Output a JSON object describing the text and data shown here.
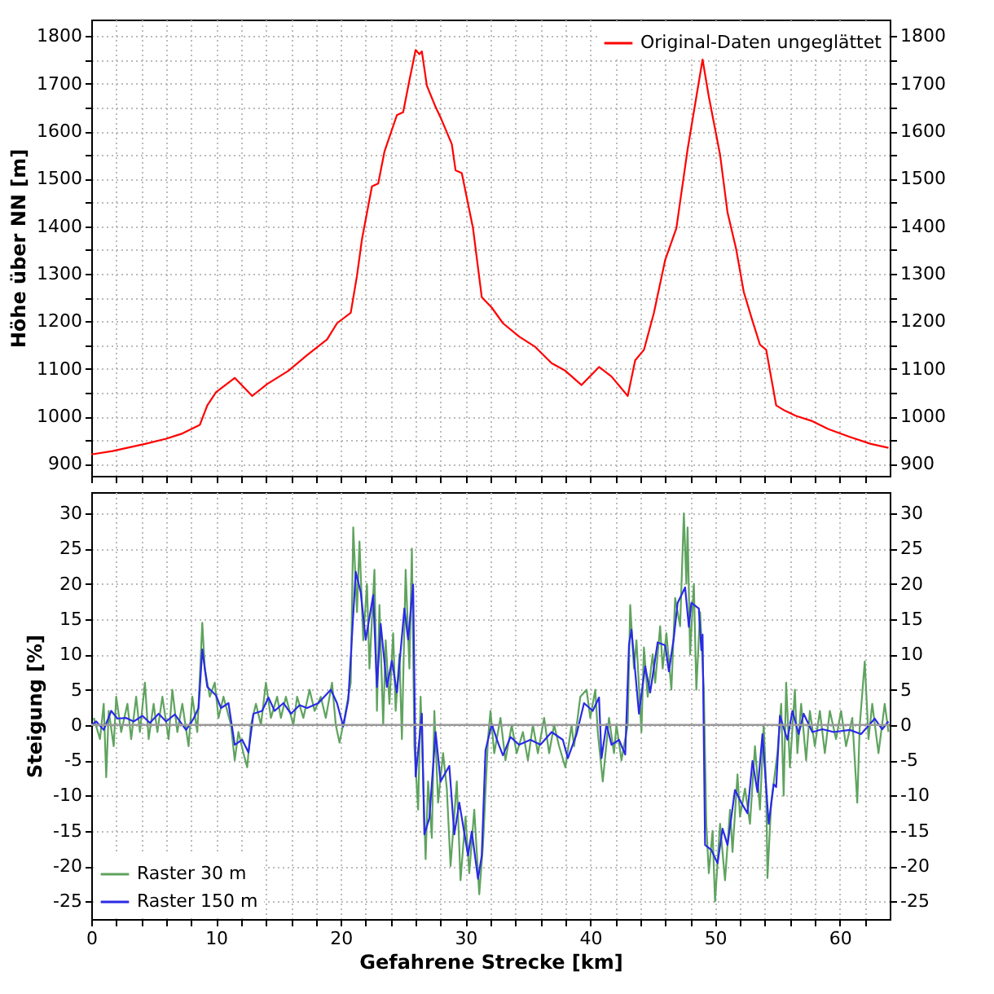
{
  "chart_data": [
    {
      "type": "line",
      "ylabel": "Höhe über NN [m]",
      "xlim": [
        0,
        64
      ],
      "ylim": [
        875,
        1835
      ],
      "y2lim": [
        875,
        1835
      ],
      "grid": true,
      "legend": "top right",
      "tick_labels": "y",
      "xticks": [
        0,
        {
          "value": 2,
          "label": null
        },
        {
          "value": 4,
          "label": null
        },
        {
          "value": 6,
          "label": null
        },
        {
          "value": 8,
          "label": null
        },
        10,
        {
          "value": 12,
          "label": null
        },
        {
          "value": 14,
          "label": null
        },
        {
          "value": 16,
          "label": null
        },
        {
          "value": 18,
          "label": null
        },
        20,
        {
          "value": 22,
          "label": null
        },
        {
          "value": 24,
          "label": null
        },
        {
          "value": 26,
          "label": null
        },
        {
          "value": 28,
          "label": null
        },
        30,
        {
          "value": 32,
          "label": null
        },
        {
          "value": 34,
          "label": null
        },
        {
          "value": 36,
          "label": null
        },
        {
          "value": 38,
          "label": null
        },
        40,
        {
          "value": 42,
          "label": null
        },
        {
          "value": 44,
          "label": null
        },
        {
          "value": 46,
          "label": null
        },
        {
          "value": 48,
          "label": null
        },
        50,
        {
          "value": 52,
          "label": null
        },
        {
          "value": 54,
          "label": null
        },
        {
          "value": 56,
          "label": null
        },
        {
          "value": 58,
          "label": null
        },
        60,
        {
          "value": 62,
          "label": null
        }
      ],
      "yticks": [
        900,
        {
          "value": 950,
          "label": null
        },
        1000,
        {
          "value": 1050,
          "label": null
        },
        1100,
        {
          "value": 1150,
          "label": null
        },
        1200,
        {
          "value": 1250,
          "label": null
        },
        1300,
        {
          "value": 1350,
          "label": null
        },
        1400,
        {
          "value": 1450,
          "label": null
        },
        1500,
        {
          "value": 1550,
          "label": null
        },
        1600,
        {
          "value": 1650,
          "label": null
        },
        1700,
        {
          "value": 1750,
          "label": null
        },
        1800
      ],
      "y2ticks": [
        900,
        {
          "value": 950,
          "label": null
        },
        1000,
        {
          "value": 1050,
          "label": null
        },
        1100,
        {
          "value": 1150,
          "label": null
        },
        1200,
        {
          "value": 1250,
          "label": null
        },
        1300,
        {
          "value": 1350,
          "label": null
        },
        1400,
        {
          "value": 1450,
          "label": null
        },
        1500,
        {
          "value": 1550,
          "label": null
        },
        1600,
        {
          "value": 1650,
          "label": null
        },
        1700,
        {
          "value": 1750,
          "label": null
        },
        1800
      ],
      "series": [
        {
          "name": "Original-Daten ungeglättet",
          "color": "#ff0000",
          "x": [
            0,
            1.7,
            4.3,
            6.0,
            7.3,
            8.7,
            9.3,
            10.0,
            11.5,
            12.9,
            14.1,
            15.8,
            17.3,
            18.9,
            19.7,
            20.8,
            21.3,
            21.7,
            22.5,
            23.0,
            23.5,
            24.5,
            25.0,
            25.5,
            26.0,
            26.3,
            26.5,
            26.9,
            27.6,
            28.0,
            28.9,
            29.2,
            29.7,
            30.6,
            31.3,
            32.1,
            33.0,
            34.3,
            35.6,
            36.9,
            38.0,
            39.3,
            40.7,
            41.7,
            43.0,
            43.6,
            44.3,
            45.1,
            46.0,
            46.9,
            47.8,
            49.0,
            49.5,
            50.4,
            51.0,
            51.7,
            52.3,
            53.0,
            53.6,
            54.1,
            54.9,
            55.6,
            56.5,
            57.8,
            59.1,
            60.8,
            62.5,
            63.9
          ],
          "values": [
            920,
            927,
            942,
            953,
            964,
            982,
            1023,
            1051,
            1081,
            1043,
            1068,
            1096,
            1129,
            1162,
            1196,
            1218,
            1296,
            1373,
            1484,
            1490,
            1557,
            1634,
            1640,
            1707,
            1771,
            1762,
            1768,
            1696,
            1651,
            1629,
            1573,
            1518,
            1512,
            1396,
            1251,
            1229,
            1196,
            1168,
            1146,
            1112,
            1096,
            1066,
            1104,
            1084,
            1043,
            1118,
            1140,
            1218,
            1329,
            1396,
            1562,
            1751,
            1673,
            1551,
            1429,
            1351,
            1262,
            1201,
            1151,
            1140,
            1023,
            1012,
            1001,
            990,
            973,
            957,
            942,
            934
          ]
        }
      ]
    },
    {
      "type": "line",
      "xlabel": "Gefahrene Strecke [km]",
      "ylabel": "Steigung [%]",
      "xlim": [
        0,
        64
      ],
      "ylim": [
        -27.5,
        33
      ],
      "y2lim": [
        -27.5,
        33
      ],
      "grid": true,
      "legend": "bottom left",
      "xticks": [
        0,
        {
          "value": 2,
          "label": null
        },
        {
          "value": 4,
          "label": null
        },
        {
          "value": 6,
          "label": null
        },
        {
          "value": 8,
          "label": null
        },
        10,
        {
          "value": 12,
          "label": null
        },
        {
          "value": 14,
          "label": null
        },
        {
          "value": 16,
          "label": null
        },
        {
          "value": 18,
          "label": null
        },
        20,
        {
          "value": 22,
          "label": null
        },
        {
          "value": 24,
          "label": null
        },
        {
          "value": 26,
          "label": null
        },
        {
          "value": 28,
          "label": null
        },
        30,
        {
          "value": 32,
          "label": null
        },
        {
          "value": 34,
          "label": null
        },
        {
          "value": 36,
          "label": null
        },
        {
          "value": 38,
          "label": null
        },
        40,
        {
          "value": 42,
          "label": null
        },
        {
          "value": 44,
          "label": null
        },
        {
          "value": 46,
          "label": null
        },
        {
          "value": 48,
          "label": null
        },
        50,
        {
          "value": 52,
          "label": null
        },
        {
          "value": 54,
          "label": null
        },
        {
          "value": 56,
          "label": null
        },
        {
          "value": 58,
          "label": null
        },
        60,
        {
          "value": 62,
          "label": null
        }
      ],
      "yticks": [
        -25,
        -20,
        -15,
        -10,
        -5,
        0,
        5,
        10,
        15,
        20,
        25,
        30
      ],
      "y2ticks": [
        -25,
        -20,
        -15,
        -10,
        -5,
        0,
        5,
        10,
        15,
        20,
        25,
        30
      ],
      "ref_lines": [
        {
          "axis": "y",
          "value": 0,
          "color": "#999999"
        }
      ],
      "series": [
        {
          "name": "Raster 30 m",
          "color": "#5fa35f",
          "x": [
            0.2,
            0.7,
            1.0,
            1.2,
            1.4,
            1.8,
            2.0,
            2.4,
            2.9,
            3.2,
            3.6,
            3.9,
            4.3,
            4.6,
            5.0,
            5.3,
            5.7,
            6.2,
            6.5,
            6.9,
            7.3,
            7.8,
            8.1,
            8.5,
            8.9,
            9.1,
            9.5,
            9.9,
            10.2,
            10.6,
            11.2,
            11.5,
            11.8,
            12.2,
            12.5,
            12.8,
            13.2,
            13.6,
            14.0,
            14.4,
            14.9,
            15.2,
            15.6,
            16.2,
            16.5,
            17.0,
            17.5,
            17.9,
            18.4,
            18.8,
            19.3,
            19.6,
            19.9,
            20.3,
            20.8,
            21.0,
            21.3,
            21.5,
            21.8,
            22.1,
            22.3,
            22.7,
            22.9,
            23.1,
            23.4,
            23.6,
            23.9,
            24.2,
            24.4,
            24.7,
            24.9,
            25.2,
            25.5,
            25.7,
            25.9,
            26.2,
            26.4,
            26.8,
            27.0,
            27.3,
            27.5,
            27.8,
            28.2,
            28.5,
            28.8,
            29.3,
            29.6,
            30.0,
            30.3,
            30.7,
            31.1,
            31.4,
            31.8,
            32.0,
            32.3,
            32.8,
            33.2,
            33.7,
            34.1,
            34.6,
            35.0,
            35.4,
            35.8,
            36.3,
            36.7,
            37.1,
            37.5,
            38.0,
            38.5,
            38.7,
            39.2,
            39.7,
            40.0,
            40.4,
            40.6,
            41.0,
            41.5,
            41.9,
            42.1,
            42.5,
            43.0,
            43.2,
            43.5,
            43.7,
            44.1,
            44.3,
            44.6,
            45.0,
            45.2,
            45.6,
            45.8,
            46.1,
            46.5,
            46.8,
            47.2,
            47.5,
            47.7,
            47.8,
            48.0,
            48.3,
            48.5,
            48.8,
            49.1,
            49.3,
            49.5,
            49.8,
            50.0,
            50.4,
            50.8,
            51.2,
            51.4,
            51.8,
            52.0,
            52.4,
            52.8,
            53.2,
            53.6,
            53.9,
            54.1,
            54.2,
            54.5,
            55.0,
            55.3,
            55.5,
            55.7,
            56.0,
            56.4,
            56.6,
            56.9,
            57.3,
            57.6,
            58.0,
            58.4,
            58.8,
            59.2,
            59.7,
            60.1,
            60.5,
            61.0,
            61.4,
            61.6,
            62.0,
            62.3,
            62.6,
            63.1,
            63.6,
            63.9
          ],
          "values": [
            1,
            -2,
            3,
            -7.4,
            2,
            -3,
            4,
            -1,
            3,
            -2,
            4,
            -1,
            6,
            -2,
            3,
            -1,
            4,
            -2,
            5,
            -1,
            3,
            -3,
            4,
            -1,
            14.5,
            8,
            4,
            6,
            1,
            4,
            0,
            -5,
            -1,
            -4,
            -6,
            0,
            3,
            0,
            6,
            1,
            4,
            1,
            4,
            0,
            4,
            1,
            5,
            2,
            4,
            1,
            6,
            0,
            -2.5,
            1,
            6,
            28,
            16,
            26,
            12,
            20,
            8,
            22,
            2,
            17,
            0,
            12,
            3,
            13,
            2,
            10,
            -2,
            22,
            8,
            25,
            -3,
            -12,
            4,
            -19,
            -8,
            -16,
            2,
            -11,
            -4,
            -9,
            -20,
            -8,
            -22,
            -13,
            -21,
            -12,
            -24,
            -17,
            -2,
            2,
            -4,
            1,
            -5,
            0,
            -4,
            -1,
            -5,
            0,
            -4,
            1,
            -4,
            0,
            -3,
            -6,
            0,
            -3,
            4,
            5,
            1,
            5,
            -1,
            -8,
            1,
            -4,
            0,
            -5,
            0,
            17,
            8,
            12,
            -1,
            11,
            4,
            10,
            6,
            14,
            8,
            13,
            5,
            18,
            14,
            30,
            20,
            28,
            10,
            20,
            5,
            16,
            5,
            -14,
            -21,
            -15,
            -25,
            -14,
            -22,
            -12,
            -18,
            -7,
            -13,
            -9,
            -14,
            -3,
            -12,
            0,
            -9,
            -21.7,
            -11,
            -4,
            3,
            -10,
            6,
            -6,
            5,
            -4,
            3,
            -5,
            2,
            -3,
            2,
            -4,
            2,
            -2,
            2,
            -3,
            1,
            -11,
            0,
            9,
            -2,
            3,
            -4,
            3,
            -1
          ]
        },
        {
          "name": "Raster 150 m",
          "color": "#2a2ae6",
          "x": [
            0,
            0.4,
            1.0,
            1.6,
            2.1,
            2.8,
            3.4,
            4.1,
            4.7,
            5.4,
            6.0,
            6.7,
            7.6,
            8.2,
            8.6,
            8.9,
            9.3,
            10.0,
            10.4,
            11.0,
            11.5,
            12.1,
            12.6,
            13.0,
            13.7,
            14.2,
            14.7,
            15.4,
            16.0,
            16.7,
            17.3,
            18.2,
            19.2,
            19.7,
            20.2,
            20.6,
            21.2,
            21.6,
            22.0,
            22.6,
            22.9,
            23.2,
            23.7,
            24.1,
            24.5,
            25.1,
            25.4,
            25.8,
            26.0,
            26.5,
            26.7,
            27.1,
            27.6,
            28.0,
            28.7,
            29.1,
            29.5,
            30.2,
            30.5,
            31.0,
            31.3,
            31.6,
            32.1,
            32.6,
            33.0,
            33.6,
            34.3,
            35.2,
            36.0,
            36.9,
            37.8,
            38.2,
            38.9,
            39.5,
            40.2,
            40.7,
            40.9,
            41.3,
            41.7,
            42.3,
            42.8,
            43.1,
            43.3,
            43.9,
            44.4,
            44.8,
            45.4,
            46.0,
            46.3,
            46.7,
            47.0,
            47.6,
            47.9,
            48.1,
            48.7,
            48.9,
            49.0,
            49.2,
            49.7,
            50.2,
            50.6,
            51.0,
            51.6,
            52.1,
            52.6,
            53.0,
            53.4,
            53.8,
            54.3,
            54.7,
            54.9,
            55.2,
            55.8,
            56.2,
            56.7,
            57.1,
            57.8,
            58.6,
            59.5,
            60.8,
            61.7,
            62.8,
            63.4,
            63.9
          ],
          "values": [
            0,
            0.5,
            -0.7,
            2.0,
            0.9,
            1.0,
            0.5,
            1.3,
            0.3,
            1.6,
            0.5,
            1.5,
            -0.7,
            0.9,
            2.4,
            10.7,
            5.4,
            4.2,
            2.4,
            3.1,
            -2.8,
            -2.1,
            -3.9,
            1.6,
            2.0,
            3.9,
            2.0,
            3.1,
            1.6,
            2.8,
            2.4,
            3.1,
            5.0,
            3.1,
            -0.2,
            3.5,
            21.7,
            18.8,
            12.1,
            18.4,
            5.4,
            14.3,
            5.4,
            9.1,
            4.6,
            16.5,
            12.1,
            19.9,
            -7.3,
            1.6,
            -15.5,
            -13.2,
            -1.0,
            -8.0,
            -5.8,
            -15.5,
            -11.0,
            -18.5,
            -15.1,
            -21.8,
            -18.5,
            -3.6,
            0.1,
            -2.5,
            -4.3,
            -1.7,
            -2.8,
            -2.1,
            -2.8,
            -1.0,
            -2.1,
            -4.7,
            -1.3,
            3.1,
            2.0,
            3.9,
            -4.7,
            0.1,
            -2.8,
            -2.1,
            -4.2,
            11.3,
            13.5,
            1.6,
            8.3,
            4.6,
            11.7,
            11.3,
            7.6,
            12.4,
            17.3,
            19.5,
            13.9,
            17.3,
            16.5,
            10.6,
            12.8,
            -17.0,
            -17.7,
            -19.6,
            -14.7,
            -17.0,
            -9.2,
            -11.0,
            -12.5,
            -5.1,
            -9.5,
            -1.3,
            -14.0,
            -8.4,
            -8.8,
            1.3,
            -2.1,
            2.0,
            -1.3,
            1.6,
            -1.0,
            -0.6,
            -1.0,
            -0.7,
            -1.3,
            0.9,
            -0.6,
            0.5
          ]
        }
      ]
    }
  ]
}
